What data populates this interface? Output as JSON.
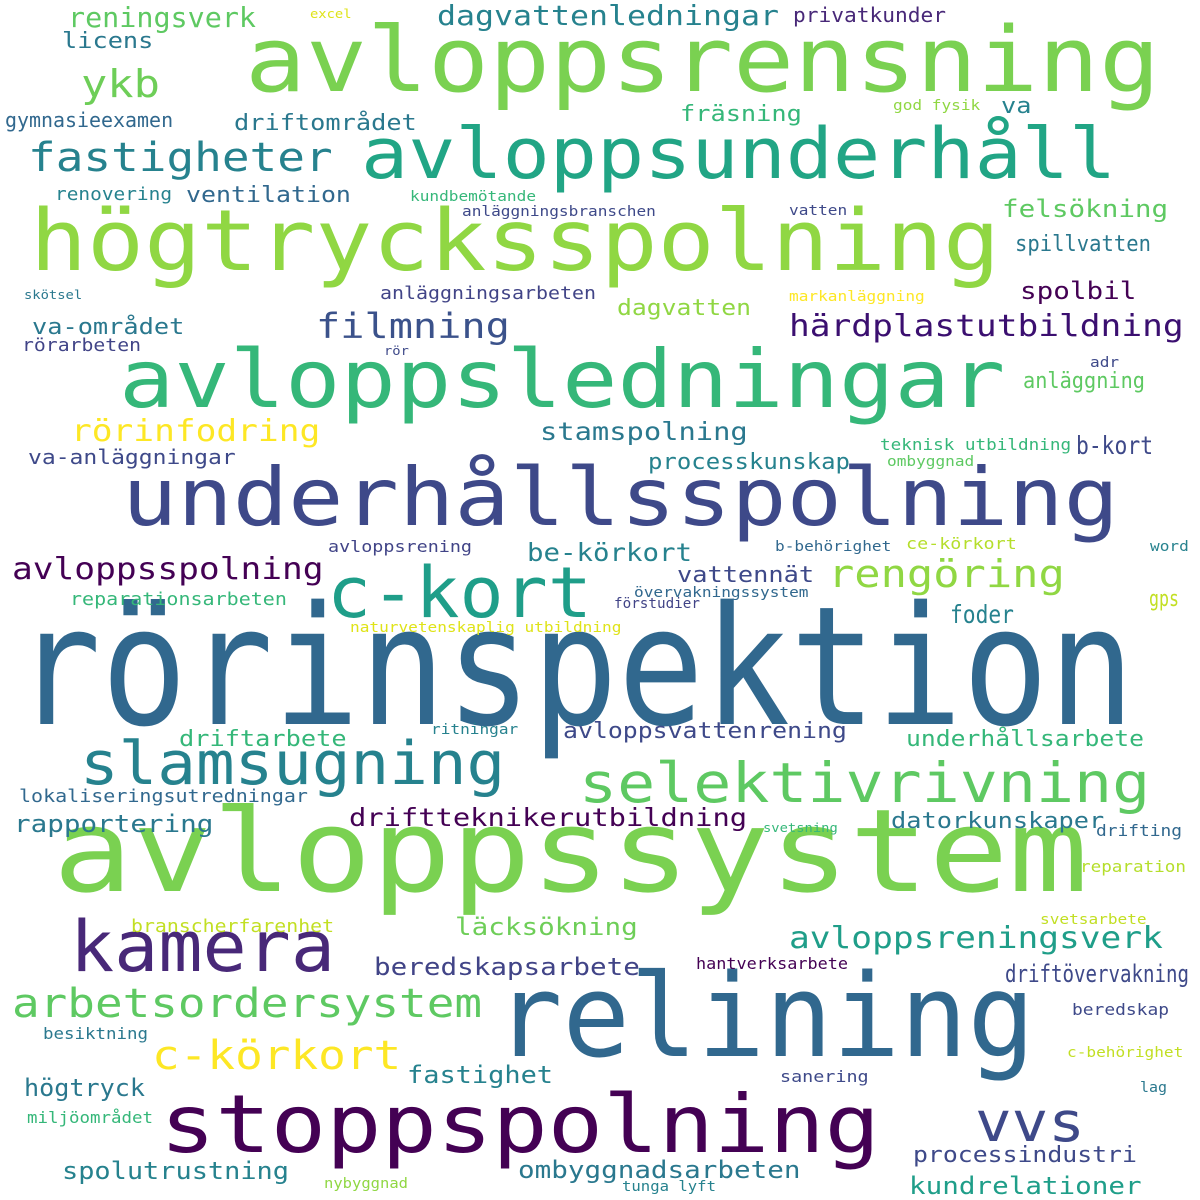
{
  "words": [
    {
      "text": "rörinspektion",
      "color": "#31688e"
    },
    {
      "text": "avloppssystem",
      "color": "#7ad151"
    },
    {
      "text": "avloppsrensning",
      "color": "#7ad151"
    },
    {
      "text": "högtrycksspolning",
      "color": "#90d743"
    },
    {
      "text": "avloppsledningar",
      "color": "#35b779"
    },
    {
      "text": "underhållsspolning",
      "color": "#3e4989"
    },
    {
      "text": "relining",
      "color": "#31688e"
    },
    {
      "text": "avloppsunderhåll",
      "color": "#21a585"
    },
    {
      "text": "stoppspolning",
      "color": "#440154"
    },
    {
      "text": "kamera",
      "color": "#482878"
    },
    {
      "text": "c-kort",
      "color": "#1f9e89"
    },
    {
      "text": "slamsugning",
      "color": "#26828e"
    },
    {
      "text": "selektivrivning",
      "color": "#5ec962"
    },
    {
      "text": "vvs",
      "color": "#3e4989"
    },
    {
      "text": "arbetsordersystem",
      "color": "#5ec962"
    },
    {
      "text": "fastigheter",
      "color": "#26828e"
    },
    {
      "text": "c-körkort",
      "color": "#fde725"
    },
    {
      "text": "rengöring",
      "color": "#90d743"
    },
    {
      "text": "filmning",
      "color": "#3b528b"
    },
    {
      "text": "avloppsreningsverk",
      "color": "#1f9e89"
    },
    {
      "text": "ykb",
      "color": "#6ece58"
    },
    {
      "text": "reningsverk",
      "color": "#5ec962"
    },
    {
      "text": "dagvattenledningar",
      "color": "#26828e"
    },
    {
      "text": "härdplastutbildning",
      "color": "#3b0f70"
    },
    {
      "text": "avloppsspolning",
      "color": "#440154"
    },
    {
      "text": "rörinfodring",
      "color": "#fde725"
    },
    {
      "text": "stamspolning",
      "color": "#2a788e"
    },
    {
      "text": "processkunskap",
      "color": "#26828e"
    },
    {
      "text": "be-körkort",
      "color": "#26828e"
    },
    {
      "text": "b-kort",
      "color": "#3e4989"
    },
    {
      "text": "vattennät",
      "color": "#3e4989"
    },
    {
      "text": "foder",
      "color": "#26828e"
    },
    {
      "text": "driftarbete",
      "color": "#35b779"
    },
    {
      "text": "avloppsvattenrening",
      "color": "#3e4989"
    },
    {
      "text": "underhållsarbete",
      "color": "#35b779"
    },
    {
      "text": "driftteknikerutbildning",
      "color": "#440154"
    },
    {
      "text": "datorkunskaper",
      "color": "#2a788e"
    },
    {
      "text": "rapportering",
      "color": "#2a788e"
    },
    {
      "text": "beredskapsarbete",
      "color": "#414487"
    },
    {
      "text": "driftövervakning",
      "color": "#3e4989"
    },
    {
      "text": "läcksökning",
      "color": "#6ece58"
    },
    {
      "text": "högtryck",
      "color": "#2a788e"
    },
    {
      "text": "fastighet",
      "color": "#26828e"
    },
    {
      "text": "spolutrustning",
      "color": "#26828e"
    },
    {
      "text": "ombyggnadsarbeten",
      "color": "#2a788e"
    },
    {
      "text": "processindustri",
      "color": "#3e4989"
    },
    {
      "text": "kundrelationer",
      "color": "#1f9e89"
    },
    {
      "text": "spolbil",
      "color": "#440154"
    },
    {
      "text": "va-området",
      "color": "#2a788e"
    },
    {
      "text": "felsökning",
      "color": "#5ec962"
    },
    {
      "text": "spillvatten",
      "color": "#2a788e"
    },
    {
      "text": "anläggning",
      "color": "#5ec962"
    },
    {
      "text": "driftområdet",
      "color": "#2a788e"
    },
    {
      "text": "fräsning",
      "color": "#35b779"
    },
    {
      "text": "ventilation",
      "color": "#31688e"
    },
    {
      "text": "licens",
      "color": "#2a788e"
    },
    {
      "text": "privatkunder",
      "color": "#482878"
    },
    {
      "text": "va",
      "color": "#26828e"
    },
    {
      "text": "dagvatten",
      "color": "#90d743"
    },
    {
      "text": "va-anläggningar",
      "color": "#3e4989"
    },
    {
      "text": "gymnasieexamen",
      "color": "#31688e"
    },
    {
      "text": "renovering",
      "color": "#26828e"
    },
    {
      "text": "anläggningsarbeten",
      "color": "#414487"
    },
    {
      "text": "rörarbeten",
      "color": "#414487"
    },
    {
      "text": "reparationsarbeten",
      "color": "#35b779"
    },
    {
      "text": "avloppsrening",
      "color": "#414487"
    },
    {
      "text": "gps",
      "color": "#c2df23"
    },
    {
      "text": "lokaliseringsutredningar",
      "color": "#31688e"
    },
    {
      "text": "branscherfarenhet",
      "color": "#c2df23"
    },
    {
      "text": "hantverksarbete",
      "color": "#440154"
    },
    {
      "text": "besiktning",
      "color": "#2a788e"
    },
    {
      "text": "miljöområdet",
      "color": "#35b779"
    },
    {
      "text": "sanering",
      "color": "#3e4989"
    },
    {
      "text": "nybyggnad",
      "color": "#90d743"
    },
    {
      "text": "tunga lyft",
      "color": "#26828e"
    },
    {
      "text": "beredskap",
      "color": "#3e4989"
    },
    {
      "text": "c-behörighet",
      "color": "#c2df23"
    },
    {
      "text": "lag",
      "color": "#2a788e"
    },
    {
      "text": "svetsarbete",
      "color": "#c2df23"
    },
    {
      "text": "reparation",
      "color": "#b5de2b"
    },
    {
      "text": "drifting",
      "color": "#31688e"
    },
    {
      "text": "svetsning",
      "color": "#35b779"
    },
    {
      "text": "word",
      "color": "#26828e"
    },
    {
      "text": "ce-körkort",
      "color": "#b5de2b"
    },
    {
      "text": "b-behörighet",
      "color": "#31688e"
    },
    {
      "text": "övervakningssystem",
      "color": "#31688e"
    },
    {
      "text": "förstudier",
      "color": "#414487"
    },
    {
      "text": "naturvetenskaplig utbildning",
      "color": "#dfe318"
    },
    {
      "text": "ritningar",
      "color": "#26828e"
    },
    {
      "text": "teknisk utbildning",
      "color": "#35b779"
    },
    {
      "text": "ombyggnad",
      "color": "#5ec962"
    },
    {
      "text": "adr",
      "color": "#3e4989"
    },
    {
      "text": "rör",
      "color": "#3e4989"
    },
    {
      "text": "markanläggning",
      "color": "#fde725"
    },
    {
      "text": "vatten",
      "color": "#3e4989"
    },
    {
      "text": "anläggningsbranschen",
      "color": "#3e4989"
    },
    {
      "text": "kundbemötande",
      "color": "#35b779"
    },
    {
      "text": "god fysik",
      "color": "#90d743"
    },
    {
      "text": "skötsel",
      "color": "#2a788e"
    },
    {
      "text": "excel",
      "color": "#dfe318"
    }
  ]
}
